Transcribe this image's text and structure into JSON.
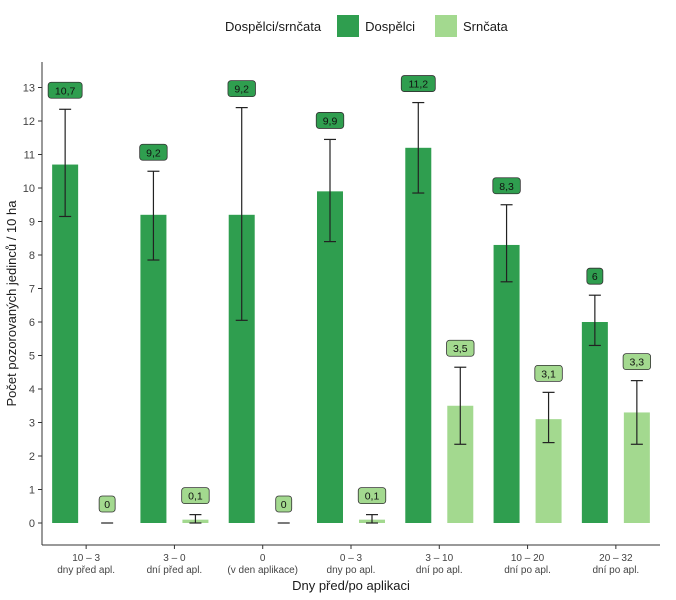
{
  "legend": {
    "title": "Dospělci/srnčata",
    "items": [
      {
        "name": "Dospělci",
        "color": "#2f9e4f"
      },
      {
        "name": "Srnčata",
        "color": "#a3d98f"
      }
    ]
  },
  "chart_data": {
    "type": "bar",
    "title": "",
    "xlabel": "Dny před/po aplikaci",
    "ylabel": "Počet pozorovaných jedinců / 10 ha",
    "ylim": [
      0,
      13.7
    ],
    "yticks": [
      "0",
      "1",
      "2",
      "3",
      "4",
      "5",
      "6",
      "7",
      "8",
      "9",
      "10",
      "11",
      "12",
      "13"
    ],
    "grid": false,
    "legend_position": "top",
    "categories": [
      {
        "line1": "10 – 3",
        "line2": "dny před apl."
      },
      {
        "line1": "3 – 0",
        "line2": "dní před apl."
      },
      {
        "line1": "0",
        "line2": "(v den aplikace)"
      },
      {
        "line1": "0 – 3",
        "line2": "dny po apl."
      },
      {
        "line1": "3 – 10",
        "line2": "dní po apl."
      },
      {
        "line1": "10 – 20",
        "line2": "dní po apl."
      },
      {
        "line1": "20 – 32",
        "line2": "dní po apl."
      }
    ],
    "series": [
      {
        "name": "Dospělci",
        "color": "#2f9e4f",
        "label_fill": "#2f9e4f",
        "values": [
          10.7,
          9.2,
          9.2,
          9.9,
          11.2,
          8.3,
          6.0
        ],
        "labels": [
          "10,7",
          "9,2",
          "9,2",
          "9,9",
          "11,2",
          "8,3",
          "6"
        ],
        "error_low": [
          9.15,
          7.85,
          6.05,
          8.4,
          9.85,
          7.2,
          5.3
        ],
        "error_high": [
          12.35,
          10.5,
          12.4,
          11.45,
          12.55,
          9.5,
          6.8
        ]
      },
      {
        "name": "Srnčata",
        "color": "#a3d98f",
        "label_fill": "#a3d98f",
        "values": [
          0,
          0.1,
          0,
          0.1,
          3.5,
          3.1,
          3.3
        ],
        "labels": [
          "0",
          "0,1",
          "0",
          "0,1",
          "3,5",
          "3,1",
          "3,3"
        ],
        "error_low": [
          0,
          0.0,
          0,
          0.0,
          2.35,
          2.4,
          2.35
        ],
        "error_high": [
          0,
          0.25,
          0,
          0.25,
          4.65,
          3.9,
          4.25
        ]
      }
    ]
  }
}
